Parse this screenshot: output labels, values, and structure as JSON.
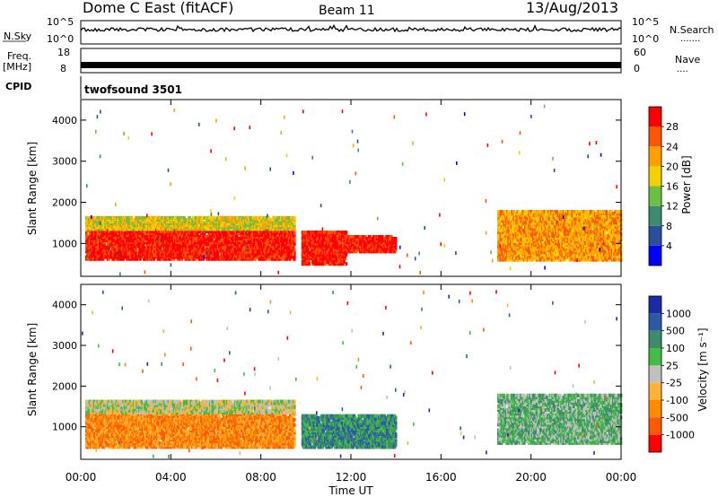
{
  "header": {
    "station": "Dome C East (fitACF)",
    "beam": "Beam 11",
    "date": "13/Aug/2013"
  },
  "top_panels": {
    "nsky": {
      "label": "N.Sky",
      "ticks": [
        "10^5",
        "10^0"
      ]
    },
    "nsearch": {
      "label": "N.Search",
      "ticks": [
        "10^5",
        "10^0"
      ],
      "dots": "......."
    },
    "freq": {
      "label1": "Freq.",
      "label2": "[MHz]",
      "ticks": [
        "18",
        "8"
      ]
    },
    "nave": {
      "label": "Nave",
      "ticks": [
        "60",
        "0"
      ],
      "dots": "...."
    },
    "cpid": {
      "label": "CPID",
      "value": "twofsound 3501"
    }
  },
  "colors": {
    "power": [
      "#0000ff",
      "#284f9e",
      "#3d8b6f",
      "#6abf44",
      "#f5d000",
      "#ffa000",
      "#ff5400",
      "#ff0000"
    ],
    "velocity": [
      "#ff0000",
      "#ff5a00",
      "#ff8a00",
      "#ffb233",
      "#c0c0c0",
      "#44bb44",
      "#3c8c6c",
      "#2a5aa6",
      "#1a2ba6"
    ]
  },
  "chart_data": [
    {
      "type": "heatmap",
      "name": "power",
      "ylabel": "Slant Range [km]",
      "xlim_hours": [
        0,
        24
      ],
      "ylim": [
        200,
        4500
      ],
      "yticks": [
        1000,
        2000,
        3000,
        4000
      ],
      "colorbar": {
        "title": "Power [dB]",
        "ticks": [
          "4",
          "8",
          "12",
          "16",
          "20",
          "24",
          "28"
        ]
      },
      "echo_regions": [
        {
          "t0": 0.2,
          "t1": 9.5,
          "r0": 620,
          "r1": 1350,
          "level": 7
        },
        {
          "t0": 0.2,
          "t1": 9.5,
          "r0": 1350,
          "r1": 1650,
          "level": 4
        },
        {
          "t0": 9.8,
          "t1": 11.8,
          "r0": 500,
          "r1": 1300,
          "level": 7
        },
        {
          "t0": 11.0,
          "t1": 14.0,
          "r0": 800,
          "r1": 1200,
          "level": 7
        },
        {
          "t0": 18.5,
          "t1": 24.0,
          "r0": 600,
          "r1": 1800,
          "level": 5
        }
      ]
    },
    {
      "type": "heatmap",
      "name": "velocity",
      "ylabel": "Slant Range [km]",
      "xlabel": "Time UT",
      "xticks": [
        "00:00",
        "04:00",
        "08:00",
        "12:00",
        "16:00",
        "20:00",
        "00:00"
      ],
      "xlim_hours": [
        0,
        24
      ],
      "ylim": [
        200,
        4500
      ],
      "yticks": [
        1000,
        2000,
        3000,
        4000
      ],
      "colorbar": {
        "title": "Velocity [m s⁻¹]",
        "ticks": [
          "-1000",
          "-500",
          "-100",
          "-25",
          "25",
          "100",
          "500",
          "1000"
        ]
      },
      "echo_regions": [
        {
          "t0": 0.2,
          "t1": 9.5,
          "r0": 500,
          "r1": 1350,
          "level": 2
        },
        {
          "t0": 0.2,
          "t1": 9.5,
          "r0": 1350,
          "r1": 1650,
          "level": 4
        },
        {
          "t0": 9.8,
          "t1": 14.0,
          "r0": 500,
          "r1": 1300,
          "level": 6
        },
        {
          "t0": 18.5,
          "t1": 24.0,
          "r0": 600,
          "r1": 1800,
          "level": 5
        }
      ]
    }
  ]
}
